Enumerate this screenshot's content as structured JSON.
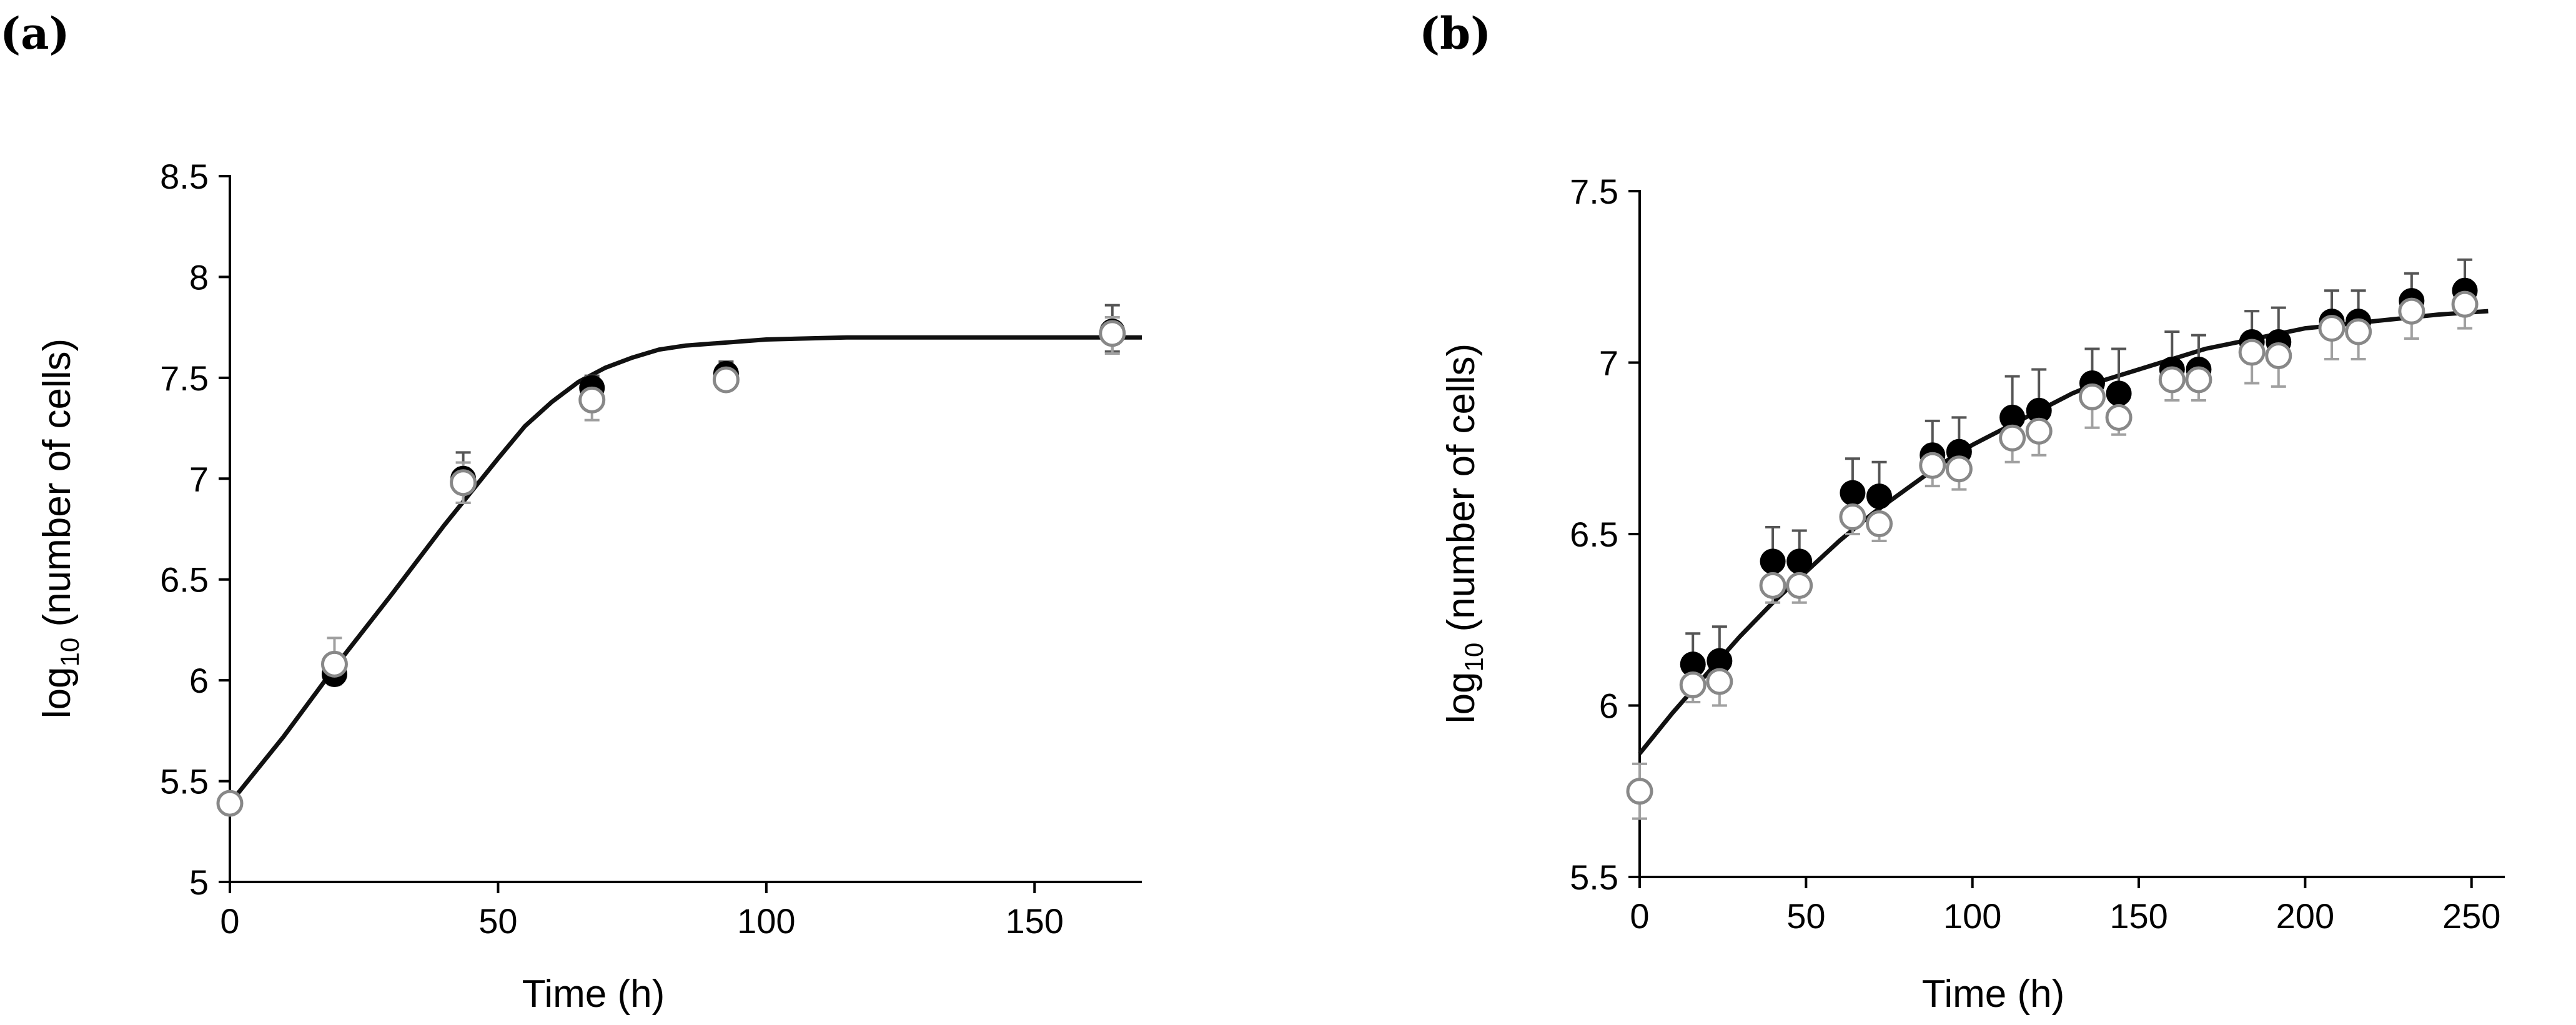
{
  "chart_data": [
    {
      "type": "scatter",
      "panel_label": "(a)",
      "xlabel": "Time (h)",
      "ylabel": {
        "base": "log",
        "sub": "10",
        "rest": " (number of cells)"
      },
      "xlim": [
        0,
        170
      ],
      "ylim": [
        5,
        8.5
      ],
      "x_ticks": [
        0,
        50,
        100,
        150
      ],
      "x_tick_labels": [
        "0",
        "50",
        "100",
        "150"
      ],
      "y_ticks": [
        5,
        5.5,
        6,
        6.5,
        7,
        7.5,
        8,
        8.5
      ],
      "y_tick_labels": [
        "5",
        "5.5",
        "6",
        "6.5",
        "7",
        "7.5",
        "8",
        "8.5"
      ],
      "series": [
        {
          "name": "filled",
          "marker": "filled-circle",
          "color": "#000000",
          "points": [
            {
              "x": 0,
              "y": 5.39,
              "err_up": 0.0,
              "err_down": 0.0
            },
            {
              "x": 19.5,
              "y": 6.03,
              "err_up": 0.0,
              "err_down": 0.0
            },
            {
              "x": 43.5,
              "y": 7.0,
              "err_up": 0.13,
              "err_down": 0.12
            },
            {
              "x": 67.5,
              "y": 7.45,
              "err_up": 0.06,
              "err_down": 0.06
            },
            {
              "x": 92.5,
              "y": 7.52,
              "err_up": 0.06,
              "err_down": 0.06
            },
            {
              "x": 164.5,
              "y": 7.73,
              "err_up": 0.13,
              "err_down": 0.1
            }
          ]
        },
        {
          "name": "open",
          "marker": "open-circle",
          "color": "#888888",
          "points": [
            {
              "x": 0,
              "y": 5.39,
              "err_up": 0.0,
              "err_down": 0.0
            },
            {
              "x": 19.5,
              "y": 6.08,
              "err_up": 0.13,
              "err_down": 0.1
            },
            {
              "x": 43.5,
              "y": 6.98,
              "err_up": 0.1,
              "err_down": 0.1
            },
            {
              "x": 67.5,
              "y": 7.39,
              "err_up": 0.1,
              "err_down": 0.1
            },
            {
              "x": 92.5,
              "y": 7.49,
              "err_up": 0.06,
              "err_down": 0.05
            },
            {
              "x": 164.5,
              "y": 7.72,
              "err_up": 0.08,
              "err_down": 0.1
            }
          ]
        }
      ],
      "fit": {
        "x": [
          0,
          10,
          20,
          30,
          40,
          50,
          55,
          60,
          65,
          70,
          75,
          80,
          85,
          90,
          100,
          115,
          130,
          150,
          170
        ],
        "y": [
          5.39,
          5.72,
          6.08,
          6.42,
          6.77,
          7.1,
          7.26,
          7.38,
          7.48,
          7.55,
          7.6,
          7.64,
          7.66,
          7.67,
          7.69,
          7.7,
          7.7,
          7.7,
          7.7
        ]
      }
    },
    {
      "type": "scatter",
      "panel_label": "(b)",
      "xlabel": "Time (h)",
      "ylabel": {
        "base": "log",
        "sub": "10",
        "rest": " (number of cells)"
      },
      "xlim": [
        0,
        260
      ],
      "ylim": [
        5.5,
        7.5
      ],
      "x_ticks": [
        0,
        50,
        100,
        150,
        200,
        250
      ],
      "x_tick_labels": [
        "0",
        "50",
        "100",
        "150",
        "200",
        "250"
      ],
      "y_ticks": [
        5.5,
        6,
        6.5,
        7,
        7.5
      ],
      "y_tick_labels": [
        "5.5",
        "6",
        "6.5",
        "7",
        "7.5"
      ],
      "series": [
        {
          "name": "filled",
          "marker": "filled-circle",
          "color": "#000000",
          "points": [
            {
              "x": 0,
              "y": 5.75,
              "err_up": 0.0,
              "err_down": 0.0
            },
            {
              "x": 16,
              "y": 6.12,
              "err_up": 0.09,
              "err_down": 0.0
            },
            {
              "x": 24,
              "y": 6.13,
              "err_up": 0.1,
              "err_down": 0.0
            },
            {
              "x": 40,
              "y": 6.42,
              "err_up": 0.1,
              "err_down": 0.0
            },
            {
              "x": 48,
              "y": 6.42,
              "err_up": 0.09,
              "err_down": 0.0
            },
            {
              "x": 64,
              "y": 6.62,
              "err_up": 0.1,
              "err_down": 0.0
            },
            {
              "x": 72,
              "y": 6.61,
              "err_up": 0.1,
              "err_down": 0.0
            },
            {
              "x": 88,
              "y": 6.73,
              "err_up": 0.1,
              "err_down": 0.0
            },
            {
              "x": 96,
              "y": 6.74,
              "err_up": 0.1,
              "err_down": 0.0
            },
            {
              "x": 112,
              "y": 6.84,
              "err_up": 0.12,
              "err_down": 0.0
            },
            {
              "x": 120,
              "y": 6.86,
              "err_up": 0.12,
              "err_down": 0.0
            },
            {
              "x": 136,
              "y": 6.94,
              "err_up": 0.1,
              "err_down": 0.0
            },
            {
              "x": 144,
              "y": 6.91,
              "err_up": 0.13,
              "err_down": 0.0
            },
            {
              "x": 160,
              "y": 6.98,
              "err_up": 0.11,
              "err_down": 0.0
            },
            {
              "x": 168,
              "y": 6.98,
              "err_up": 0.1,
              "err_down": 0.0
            },
            {
              "x": 184,
              "y": 7.06,
              "err_up": 0.09,
              "err_down": 0.0
            },
            {
              "x": 192,
              "y": 7.06,
              "err_up": 0.1,
              "err_down": 0.0
            },
            {
              "x": 208,
              "y": 7.12,
              "err_up": 0.09,
              "err_down": 0.0
            },
            {
              "x": 216,
              "y": 7.12,
              "err_up": 0.09,
              "err_down": 0.0
            },
            {
              "x": 232,
              "y": 7.18,
              "err_up": 0.08,
              "err_down": 0.0
            },
            {
              "x": 248,
              "y": 7.21,
              "err_up": 0.09,
              "err_down": 0.0
            }
          ]
        },
        {
          "name": "open",
          "marker": "open-circle",
          "color": "#888888",
          "points": [
            {
              "x": 0,
              "y": 5.75,
              "err_up": 0.08,
              "err_down": 0.08
            },
            {
              "x": 16,
              "y": 6.06,
              "err_up": 0.0,
              "err_down": 0.05
            },
            {
              "x": 24,
              "y": 6.07,
              "err_up": 0.0,
              "err_down": 0.07
            },
            {
              "x": 40,
              "y": 6.35,
              "err_up": 0.0,
              "err_down": 0.05
            },
            {
              "x": 48,
              "y": 6.35,
              "err_up": 0.0,
              "err_down": 0.05
            },
            {
              "x": 64,
              "y": 6.55,
              "err_up": 0.0,
              "err_down": 0.05
            },
            {
              "x": 72,
              "y": 6.53,
              "err_up": 0.0,
              "err_down": 0.05
            },
            {
              "x": 88,
              "y": 6.7,
              "err_up": 0.0,
              "err_down": 0.06
            },
            {
              "x": 96,
              "y": 6.69,
              "err_up": 0.0,
              "err_down": 0.06
            },
            {
              "x": 112,
              "y": 6.78,
              "err_up": 0.0,
              "err_down": 0.07
            },
            {
              "x": 120,
              "y": 6.8,
              "err_up": 0.0,
              "err_down": 0.07
            },
            {
              "x": 136,
              "y": 6.9,
              "err_up": 0.0,
              "err_down": 0.09
            },
            {
              "x": 144,
              "y": 6.84,
              "err_up": 0.0,
              "err_down": 0.05
            },
            {
              "x": 160,
              "y": 6.95,
              "err_up": 0.0,
              "err_down": 0.06
            },
            {
              "x": 168,
              "y": 6.95,
              "err_up": 0.0,
              "err_down": 0.06
            },
            {
              "x": 184,
              "y": 7.03,
              "err_up": 0.0,
              "err_down": 0.09
            },
            {
              "x": 192,
              "y": 7.02,
              "err_up": 0.0,
              "err_down": 0.09
            },
            {
              "x": 208,
              "y": 7.1,
              "err_up": 0.0,
              "err_down": 0.09
            },
            {
              "x": 216,
              "y": 7.09,
              "err_up": 0.0,
              "err_down": 0.08
            },
            {
              "x": 232,
              "y": 7.15,
              "err_up": 0.0,
              "err_down": 0.08
            },
            {
              "x": 248,
              "y": 7.17,
              "err_up": 0.0,
              "err_down": 0.07
            }
          ]
        }
      ],
      "fit": {
        "x": [
          0,
          10,
          20,
          30,
          40,
          50,
          60,
          70,
          80,
          90,
          100,
          110,
          120,
          130,
          140,
          150,
          160,
          170,
          180,
          190,
          200,
          210,
          220,
          230,
          240,
          255
        ],
        "y": [
          5.86,
          5.98,
          6.09,
          6.2,
          6.3,
          6.39,
          6.48,
          6.56,
          6.63,
          6.7,
          6.76,
          6.81,
          6.86,
          6.91,
          6.95,
          6.98,
          7.01,
          7.04,
          7.06,
          7.08,
          7.1,
          7.11,
          7.12,
          7.13,
          7.14,
          7.15
        ]
      }
    }
  ]
}
